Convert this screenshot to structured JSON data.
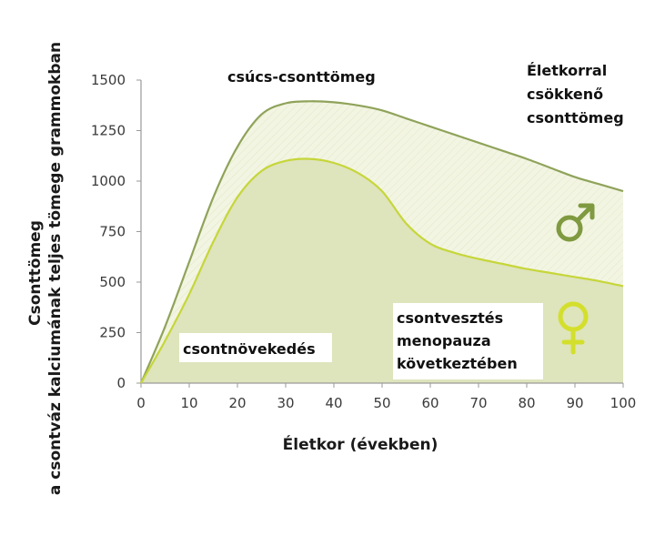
{
  "chart_data": {
    "type": "area",
    "xlabel": "Életkor (években)",
    "ylabel_line1": "Csonttömeg",
    "ylabel_line2": "a csontváz kalciumának teljes tömege grammokban",
    "xlim": [
      0,
      100
    ],
    "ylim": [
      0,
      1500
    ],
    "x_ticks": [
      0,
      10,
      20,
      30,
      40,
      50,
      60,
      70,
      80,
      90,
      100
    ],
    "y_ticks": [
      0,
      250,
      500,
      750,
      1000,
      1250,
      1500
    ],
    "grid": false,
    "series": [
      {
        "x": [
          0,
          5,
          10,
          15,
          20,
          25,
          30,
          35,
          40,
          45,
          50,
          55,
          60,
          65,
          70,
          75,
          80,
          85,
          90,
          95,
          100
        ],
        "values": [
          0,
          280,
          600,
          920,
          1170,
          1330,
          1385,
          1395,
          1390,
          1375,
          1350,
          1310,
          1270,
          1230,
          1190,
          1150,
          1110,
          1065,
          1020,
          985,
          950
        ]
      },
      {
        "x": [
          0,
          5,
          10,
          15,
          20,
          25,
          30,
          35,
          40,
          45,
          50,
          55,
          60,
          65,
          70,
          75,
          80,
          85,
          90,
          95,
          100
        ],
        "values": [
          0,
          210,
          440,
          700,
          920,
          1050,
          1100,
          1110,
          1090,
          1040,
          950,
          790,
          690,
          645,
          615,
          590,
          565,
          545,
          525,
          505,
          480
        ]
      }
    ],
    "annotations": {
      "peak": "csúcs-csonttömeg",
      "decline_line1": "Életkorral",
      "decline_line2": "csökkenő",
      "decline_line3": "csonttömeg",
      "growth": "csontnövekedés",
      "loss_line1": "csontvesztés",
      "loss_line2": "menopauza",
      "loss_line3": "következtében"
    },
    "colors": {
      "male_line": "#8fa35a",
      "female_line": "#c6d63a",
      "male_fill": "#f3f5e3",
      "female_fill": "#dee4bc",
      "male_symbol": "#7f9a40",
      "female_symbol": "#d3df2c",
      "axis": "#9a9a9a"
    },
    "icons": {
      "male": "male-symbol-icon",
      "female": "female-symbol-icon"
    }
  }
}
